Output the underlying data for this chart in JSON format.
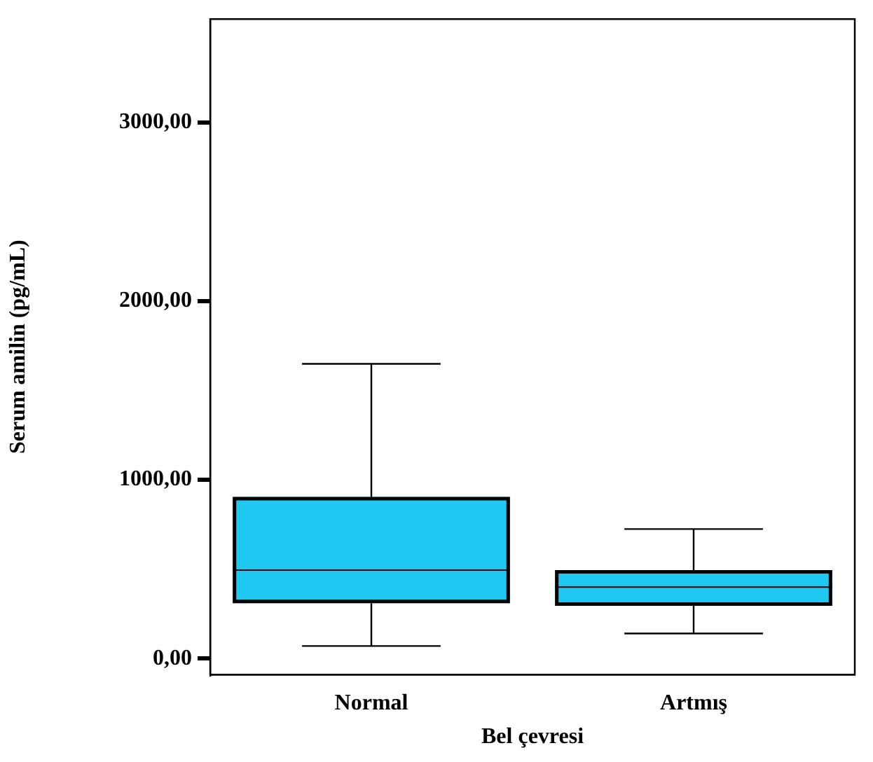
{
  "chart_data": {
    "type": "box",
    "xlabel": "Bel çevresi",
    "ylabel": "Serum amilin (pg/mL)",
    "categories": [
      "Normal",
      "Artmış"
    ],
    "color": "#1ec8f0",
    "boxes": [
      {
        "low": 70,
        "q1": 310,
        "median": 495,
        "q3": 905,
        "high": 1650
      },
      {
        "low": 140,
        "q1": 295,
        "median": 400,
        "q3": 495,
        "high": 725
      }
    ],
    "ylim": [
      -90,
      3580
    ],
    "yticks": [
      {
        "value": 0,
        "label": "0,00"
      },
      {
        "value": 1000,
        "label": "1000,00"
      },
      {
        "value": 2000,
        "label": "2000,00"
      },
      {
        "value": 3000,
        "label": "3000,00"
      }
    ]
  }
}
